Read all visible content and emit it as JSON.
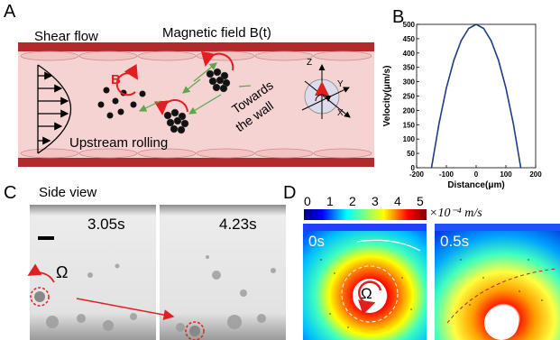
{
  "panels": {
    "A": {
      "letter": "A",
      "shear_flow": "Shear flow",
      "magnetic_field": "Magnetic field B(t)",
      "b_label": "B",
      "towards_wall": [
        "Towards",
        "the wall"
      ],
      "upstream_rolling": "Upstream rolling",
      "axes": {
        "z": "Z",
        "y": "Y",
        "x": "X"
      }
    },
    "B": {
      "letter": "B"
    },
    "C": {
      "letter": "C",
      "title": "Side view",
      "time_1": "3.05s",
      "time_2": "4.23s",
      "omega": "Ω"
    },
    "D": {
      "letter": "D",
      "colorbar_ticks": [
        "0",
        "1",
        "2",
        "3",
        "4",
        "5"
      ],
      "colorbar_unit": "×10⁻⁴ m/s",
      "time_1": "0s",
      "time_2": "0.5s",
      "omega": "Ω"
    }
  },
  "colors": {
    "vessel_wall": "#b22a2a",
    "vessel_fill": "#f6d3d3",
    "curve": "#1f3c88",
    "arrow_red": "#e02020",
    "arrow_green": "#5aa84a"
  },
  "chart_data": {
    "type": "line",
    "xlabel": "Distance(μm)",
    "ylabel": "Velocity(μm/s)",
    "xlim": [
      -200,
      200
    ],
    "ylim": [
      0,
      500
    ],
    "xticks": [
      "-200",
      "-100",
      "0",
      "100",
      "200"
    ],
    "yticks": [
      "0",
      "50",
      "100",
      "150",
      "200",
      "250",
      "300",
      "350",
      "400",
      "450",
      "500"
    ],
    "series": [
      {
        "x": [
          -150,
          -125,
          -100,
          -75,
          -50,
          -25,
          0,
          25,
          50,
          75,
          100,
          125,
          150
        ],
        "y": [
          0,
          153,
          278,
          375,
          444,
          486,
          500,
          486,
          444,
          375,
          278,
          153,
          0
        ]
      }
    ]
  }
}
